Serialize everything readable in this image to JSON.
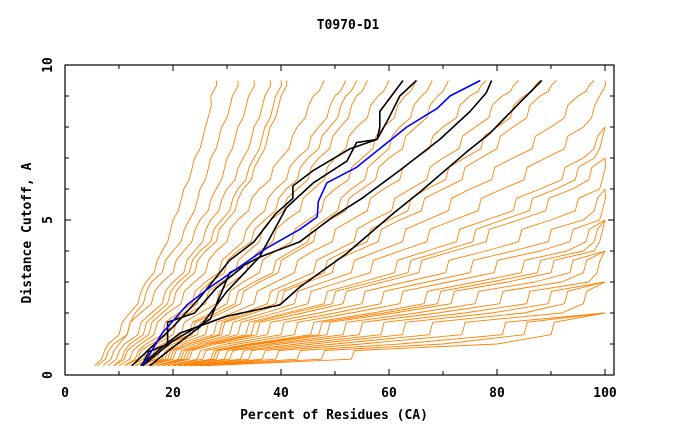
{
  "chart_data": {
    "type": "line",
    "title": "T0970-D1",
    "xlabel": "Percent of Residues (CA)",
    "ylabel": "Distance Cutoff, A",
    "xlim": [
      0,
      100
    ],
    "ylim": [
      0,
      10
    ],
    "x_ticks": [
      "0",
      "20",
      "40",
      "60",
      "80",
      "100"
    ],
    "y_ticks": [
      "0",
      "5",
      "10"
    ],
    "grid": false,
    "colors": {
      "background_models": "#ff8000",
      "highlight": "#0000ff",
      "reference": "#000000"
    },
    "highlight_series": {
      "name": "highlighted model",
      "points": [
        [
          14.4,
          0.3
        ],
        [
          18,
          1.35
        ],
        [
          22.6,
          2.26
        ],
        [
          26.9,
          2.84
        ],
        [
          37.4,
          4.1
        ],
        [
          43.5,
          4.7
        ],
        [
          46.7,
          5.1
        ],
        [
          46.9,
          5.6
        ],
        [
          48.5,
          6.2
        ],
        [
          54,
          6.7
        ],
        [
          63.3,
          8.0
        ],
        [
          68.9,
          8.6
        ],
        [
          71.3,
          9.0
        ],
        [
          76.9,
          9.5
        ]
      ]
    },
    "black_series": [
      {
        "name": "reference-1",
        "points": [
          [
            12.4,
            0.3
          ],
          [
            16,
            0.9
          ],
          [
            20,
            1.55
          ],
          [
            25,
            2.5
          ],
          [
            30.5,
            3.7
          ],
          [
            35,
            4.3
          ],
          [
            39,
            5.2
          ],
          [
            42.2,
            5.7
          ],
          [
            42.2,
            6.1
          ],
          [
            46,
            6.6
          ],
          [
            52.8,
            7.3
          ],
          [
            57.8,
            7.6
          ],
          [
            58.3,
            8.0
          ],
          [
            58.3,
            8.5
          ],
          [
            62.6,
            9.5
          ]
        ]
      },
      {
        "name": "reference-2",
        "points": [
          [
            14.4,
            0.3
          ],
          [
            20,
            1.1
          ],
          [
            26.9,
            1.8
          ],
          [
            30.5,
            3.3
          ],
          [
            36,
            3.8
          ],
          [
            41,
            5.4
          ],
          [
            46,
            6.2
          ],
          [
            52.2,
            6.9
          ],
          [
            54,
            7.5
          ],
          [
            57.8,
            7.6
          ],
          [
            60,
            8.3
          ],
          [
            62,
            9.0
          ],
          [
            65.1,
            9.5
          ]
        ]
      },
      {
        "name": "reference-3",
        "points": [
          [
            15.7,
            0.3
          ],
          [
            20,
            0.9
          ],
          [
            25,
            1.55
          ],
          [
            30,
            2.7
          ],
          [
            36,
            3.8
          ],
          [
            43.5,
            4.3
          ],
          [
            49.6,
            5.1
          ],
          [
            55,
            5.7
          ],
          [
            62,
            6.6
          ],
          [
            69.4,
            7.6
          ],
          [
            75,
            8.5
          ],
          [
            78,
            9.1
          ],
          [
            79,
            9.5
          ]
        ]
      },
      {
        "name": "reference-4",
        "points": [
          [
            14,
            0.3
          ],
          [
            18,
            0.9
          ],
          [
            21.3,
            1.35
          ],
          [
            30,
            1.9
          ],
          [
            39.8,
            2.26
          ],
          [
            43.5,
            2.84
          ],
          [
            52,
            3.9
          ],
          [
            60.7,
            5.2
          ],
          [
            65.7,
            5.9
          ],
          [
            74.4,
            7.2
          ],
          [
            78.7,
            7.8
          ],
          [
            84.3,
            8.8
          ],
          [
            88.3,
            9.5
          ]
        ]
      },
      {
        "name": "reference-5",
        "points": [
          [
            14.2,
            0.3
          ],
          [
            15.5,
            0.75
          ],
          [
            19,
            1.0
          ],
          [
            19,
            1.7
          ],
          [
            24,
            2.0
          ],
          [
            28,
            2.8
          ],
          [
            33,
            3.5
          ]
        ]
      }
    ],
    "orange_y_levels": [
      0.3,
      1,
      2,
      3,
      4,
      5,
      6,
      7,
      8,
      9,
      9.5
    ],
    "orange_series_x": [
      [
        6,
        9,
        14,
        18,
        22,
        25,
        28,
        30,
        32,
        34,
        35
      ],
      [
        8,
        11,
        16,
        20,
        24,
        27,
        30,
        33,
        35,
        37,
        38
      ],
      [
        9,
        13,
        18,
        22,
        26,
        30,
        33,
        36,
        38,
        40,
        41
      ],
      [
        10,
        14,
        19,
        24,
        28,
        32,
        36,
        40,
        43,
        46,
        48
      ],
      [
        11,
        15,
        21,
        26,
        31,
        35,
        39,
        43,
        47,
        50,
        52
      ],
      [
        12,
        17,
        23,
        29,
        34,
        38,
        43,
        47,
        51,
        54,
        56
      ],
      [
        13,
        18,
        25,
        31,
        36,
        41,
        46,
        50,
        54,
        58,
        60
      ],
      [
        14,
        19,
        27,
        33,
        39,
        45,
        50,
        55,
        59,
        63,
        65
      ],
      [
        14,
        20,
        29,
        36,
        43,
        49,
        55,
        60,
        65,
        69,
        71
      ],
      [
        15,
        21,
        31,
        39,
        46,
        53,
        59,
        65,
        70,
        75,
        78
      ],
      [
        15,
        22,
        33,
        42,
        50,
        57,
        64,
        70,
        76,
        81,
        84
      ],
      [
        16,
        23,
        35,
        45,
        54,
        62,
        70,
        77,
        83,
        88,
        91
      ],
      [
        16,
        24,
        37,
        48,
        58,
        67,
        75,
        83,
        90,
        95,
        98
      ],
      [
        17,
        25,
        39,
        51,
        62,
        72,
        81,
        89,
        96,
        99,
        100
      ],
      [
        17,
        26,
        41,
        55,
        67,
        78,
        88,
        96,
        100
      ],
      [
        18,
        27,
        44,
        59,
        72,
        84,
        94,
        100
      ],
      [
        18,
        28,
        47,
        63,
        78,
        90,
        99,
        100
      ],
      [
        19,
        30,
        50,
        67,
        83,
        96,
        100
      ],
      [
        19,
        32,
        53,
        71,
        88,
        99,
        100
      ],
      [
        20,
        34,
        57,
        76,
        93,
        100
      ],
      [
        20,
        36,
        61,
        82,
        98,
        100
      ],
      [
        21,
        38,
        65,
        87,
        100
      ],
      [
        21,
        40,
        69,
        92,
        100
      ],
      [
        22,
        43,
        74,
        97,
        100
      ],
      [
        22,
        46,
        79,
        100
      ],
      [
        23,
        50,
        85,
        100
      ],
      [
        23,
        55,
        92,
        100
      ],
      [
        24,
        62,
        100
      ],
      [
        25,
        70,
        100
      ],
      [
        26,
        80,
        100
      ],
      [
        5.5,
        8,
        12,
        15,
        18,
        20,
        22,
        24,
        26,
        27,
        28
      ],
      [
        7,
        10,
        13,
        16,
        20,
        23,
        25,
        27,
        29,
        31,
        32
      ],
      [
        9,
        12,
        17,
        21,
        25,
        29,
        32,
        35,
        37,
        39,
        40
      ],
      [
        11,
        16,
        22,
        27,
        32,
        37,
        41,
        45,
        49,
        52,
        54
      ],
      [
        13,
        19,
        28,
        35,
        42,
        48,
        53,
        58,
        62,
        66,
        68
      ],
      [
        15,
        23,
        34,
        44,
        52,
        60,
        67,
        74,
        80,
        85,
        88
      ],
      [
        17,
        27,
        42,
        57,
        70,
        81,
        91,
        98,
        100
      ],
      [
        20,
        35,
        59,
        79,
        96,
        100
      ]
    ]
  }
}
